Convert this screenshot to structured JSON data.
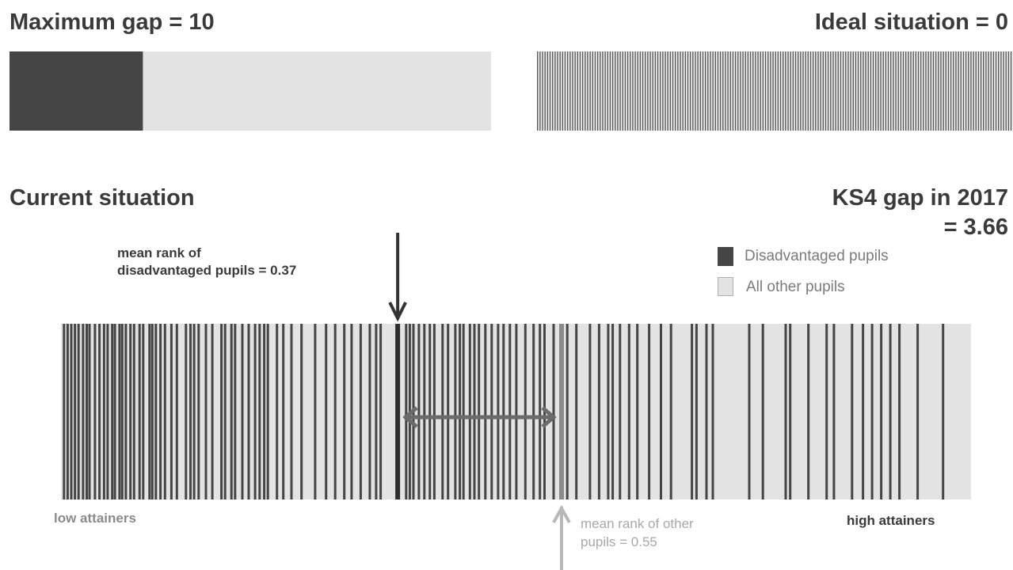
{
  "colors": {
    "disadvantaged": "#454545",
    "other": "#e3e3e3",
    "stripe_bg": "#f2f2f2",
    "arrow_dark": "#333333",
    "arrow_gap": "#6b6b6b",
    "arrow_light": "#b8b8b8",
    "text_dark": "#3a3a3a",
    "text_light": "#a8a8a8"
  },
  "max_gap": {
    "title": "Maximum gap = 10",
    "disadvantaged_share": 0.277
  },
  "ideal": {
    "title": "Ideal situation = 0",
    "stripe_count": 190
  },
  "current": {
    "title": "Current situation",
    "gap_title_line1": "KS4 gap in 2017",
    "gap_title_line2": "= 3.66",
    "legend": {
      "disadvantaged": "Disadvantaged pupils",
      "other": "All other pupils"
    },
    "mean_disadvantaged": {
      "label_line1": "mean rank of",
      "label_line2": "disadvantaged pupils =  0.37",
      "value": 0.37
    },
    "mean_other": {
      "label_line1": "mean rank of other",
      "label_line2": "pupils =  0.55",
      "value": 0.55
    },
    "low_label": "low attainers",
    "high_label": "high attainers",
    "disadvantaged_ranks": [
      0.002,
      0.006,
      0.01,
      0.014,
      0.018,
      0.023,
      0.027,
      0.03,
      0.036,
      0.041,
      0.046,
      0.05,
      0.055,
      0.058,
      0.063,
      0.066,
      0.07,
      0.075,
      0.079,
      0.085,
      0.089,
      0.096,
      0.099,
      0.103,
      0.108,
      0.113,
      0.12,
      0.126,
      0.136,
      0.141,
      0.145,
      0.15,
      0.158,
      0.165,
      0.175,
      0.179,
      0.186,
      0.19,
      0.198,
      0.205,
      0.212,
      0.217,
      0.222,
      0.226,
      0.236,
      0.243,
      0.252,
      0.263,
      0.278,
      0.29,
      0.3,
      0.31,
      0.318,
      0.328,
      0.338,
      0.345,
      0.35,
      0.378,
      0.382,
      0.386,
      0.392,
      0.398,
      0.404,
      0.409,
      0.418,
      0.424,
      0.432,
      0.437,
      0.441,
      0.448,
      0.453,
      0.458,
      0.465,
      0.472,
      0.479,
      0.485,
      0.492,
      0.499,
      0.509,
      0.518,
      0.525,
      0.53,
      0.54,
      0.55,
      0.555,
      0.565,
      0.58,
      0.59,
      0.6,
      0.605,
      0.613,
      0.623,
      0.632,
      0.645,
      0.658,
      0.669,
      0.692,
      0.697,
      0.708,
      0.715,
      0.755,
      0.77,
      0.795,
      0.8,
      0.82,
      0.84,
      0.848,
      0.868,
      0.88,
      0.89,
      0.9,
      0.91,
      0.92,
      0.94,
      0.968
    ]
  }
}
